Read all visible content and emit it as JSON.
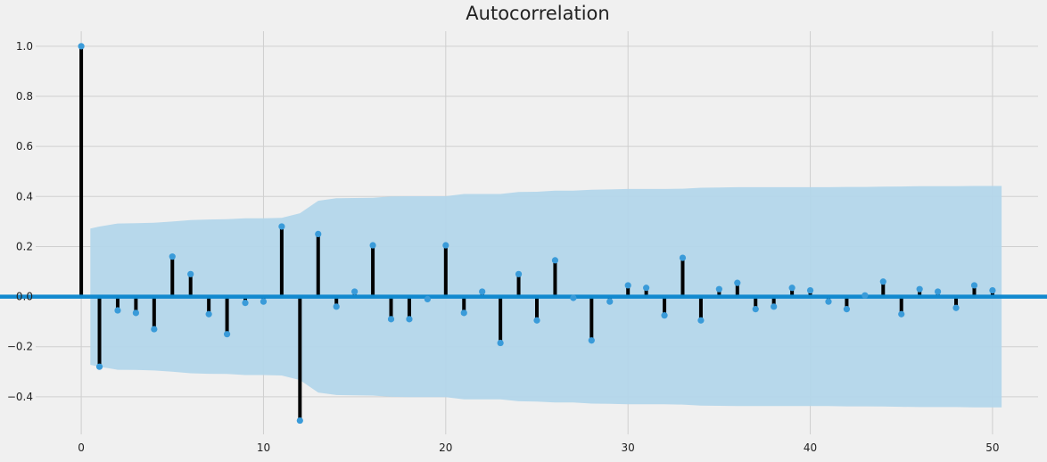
{
  "chart_data": {
    "type": "stem",
    "title": "Autocorrelation",
    "xlabel": "",
    "ylabel": "",
    "xlim": [
      -2.5,
      52.5
    ],
    "ylim": [
      -0.55,
      1.06
    ],
    "xticks": [
      0,
      10,
      20,
      30,
      40,
      50
    ],
    "yticks": [
      -0.4,
      -0.2,
      0.0,
      0.2,
      0.4,
      0.6,
      0.8,
      1.0
    ],
    "ytick_labels": [
      "−0.4",
      "−0.2",
      "0.0",
      "0.2",
      "0.4",
      "0.6",
      "0.8",
      "1.0"
    ],
    "grid": true,
    "lags": [
      0,
      1,
      2,
      3,
      4,
      5,
      6,
      7,
      8,
      9,
      10,
      11,
      12,
      13,
      14,
      15,
      16,
      17,
      18,
      19,
      20,
      21,
      22,
      23,
      24,
      25,
      26,
      27,
      28,
      29,
      30,
      31,
      32,
      33,
      34,
      35,
      36,
      37,
      38,
      39,
      40,
      41,
      42,
      43,
      44,
      45,
      46,
      47,
      48,
      49,
      50
    ],
    "acf": [
      1.0,
      -0.28,
      -0.055,
      -0.065,
      -0.13,
      0.16,
      0.09,
      -0.07,
      -0.15,
      -0.025,
      -0.02,
      0.28,
      -0.495,
      0.25,
      -0.04,
      0.02,
      0.205,
      -0.09,
      -0.09,
      -0.01,
      0.205,
      -0.065,
      0.02,
      -0.185,
      0.09,
      -0.095,
      0.145,
      -0.005,
      -0.175,
      -0.02,
      0.045,
      0.035,
      -0.075,
      0.155,
      -0.095,
      0.03,
      0.055,
      -0.05,
      -0.04,
      0.035,
      0.025,
      -0.02,
      -0.05,
      0.005,
      0.06,
      -0.07,
      0.03,
      0.02,
      -0.045,
      0.045,
      0.025
    ],
    "confidence_band": {
      "x": [
        0.5,
        1,
        2,
        3,
        4,
        5,
        6,
        7,
        8,
        9,
        10,
        11,
        12,
        13,
        14,
        15,
        16,
        17,
        18,
        19,
        20,
        21,
        22,
        23,
        24,
        25,
        26,
        27,
        28,
        29,
        30,
        31,
        32,
        33,
        34,
        35,
        36,
        37,
        38,
        39,
        40,
        41,
        42,
        43,
        44,
        45,
        46,
        47,
        48,
        49,
        50,
        50.5
      ],
      "upper": [
        0.272,
        0.28,
        0.292,
        0.293,
        0.295,
        0.3,
        0.306,
        0.308,
        0.309,
        0.313,
        0.313,
        0.315,
        0.333,
        0.383,
        0.393,
        0.394,
        0.395,
        0.4,
        0.401,
        0.401,
        0.401,
        0.41,
        0.41,
        0.41,
        0.418,
        0.419,
        0.423,
        0.423,
        0.427,
        0.428,
        0.43,
        0.43,
        0.43,
        0.431,
        0.435,
        0.436,
        0.437,
        0.437,
        0.437,
        0.437,
        0.437,
        0.437,
        0.438,
        0.438,
        0.439,
        0.44,
        0.441,
        0.441,
        0.441,
        0.442,
        0.442,
        0.442
      ]
    },
    "colors": {
      "marker": "#3a9bd9",
      "stem": "#000000",
      "band": "#b3d6ea",
      "zero_line": "#1189cf",
      "grid": "#cfcfcf",
      "background": "#f0f0f0"
    }
  }
}
